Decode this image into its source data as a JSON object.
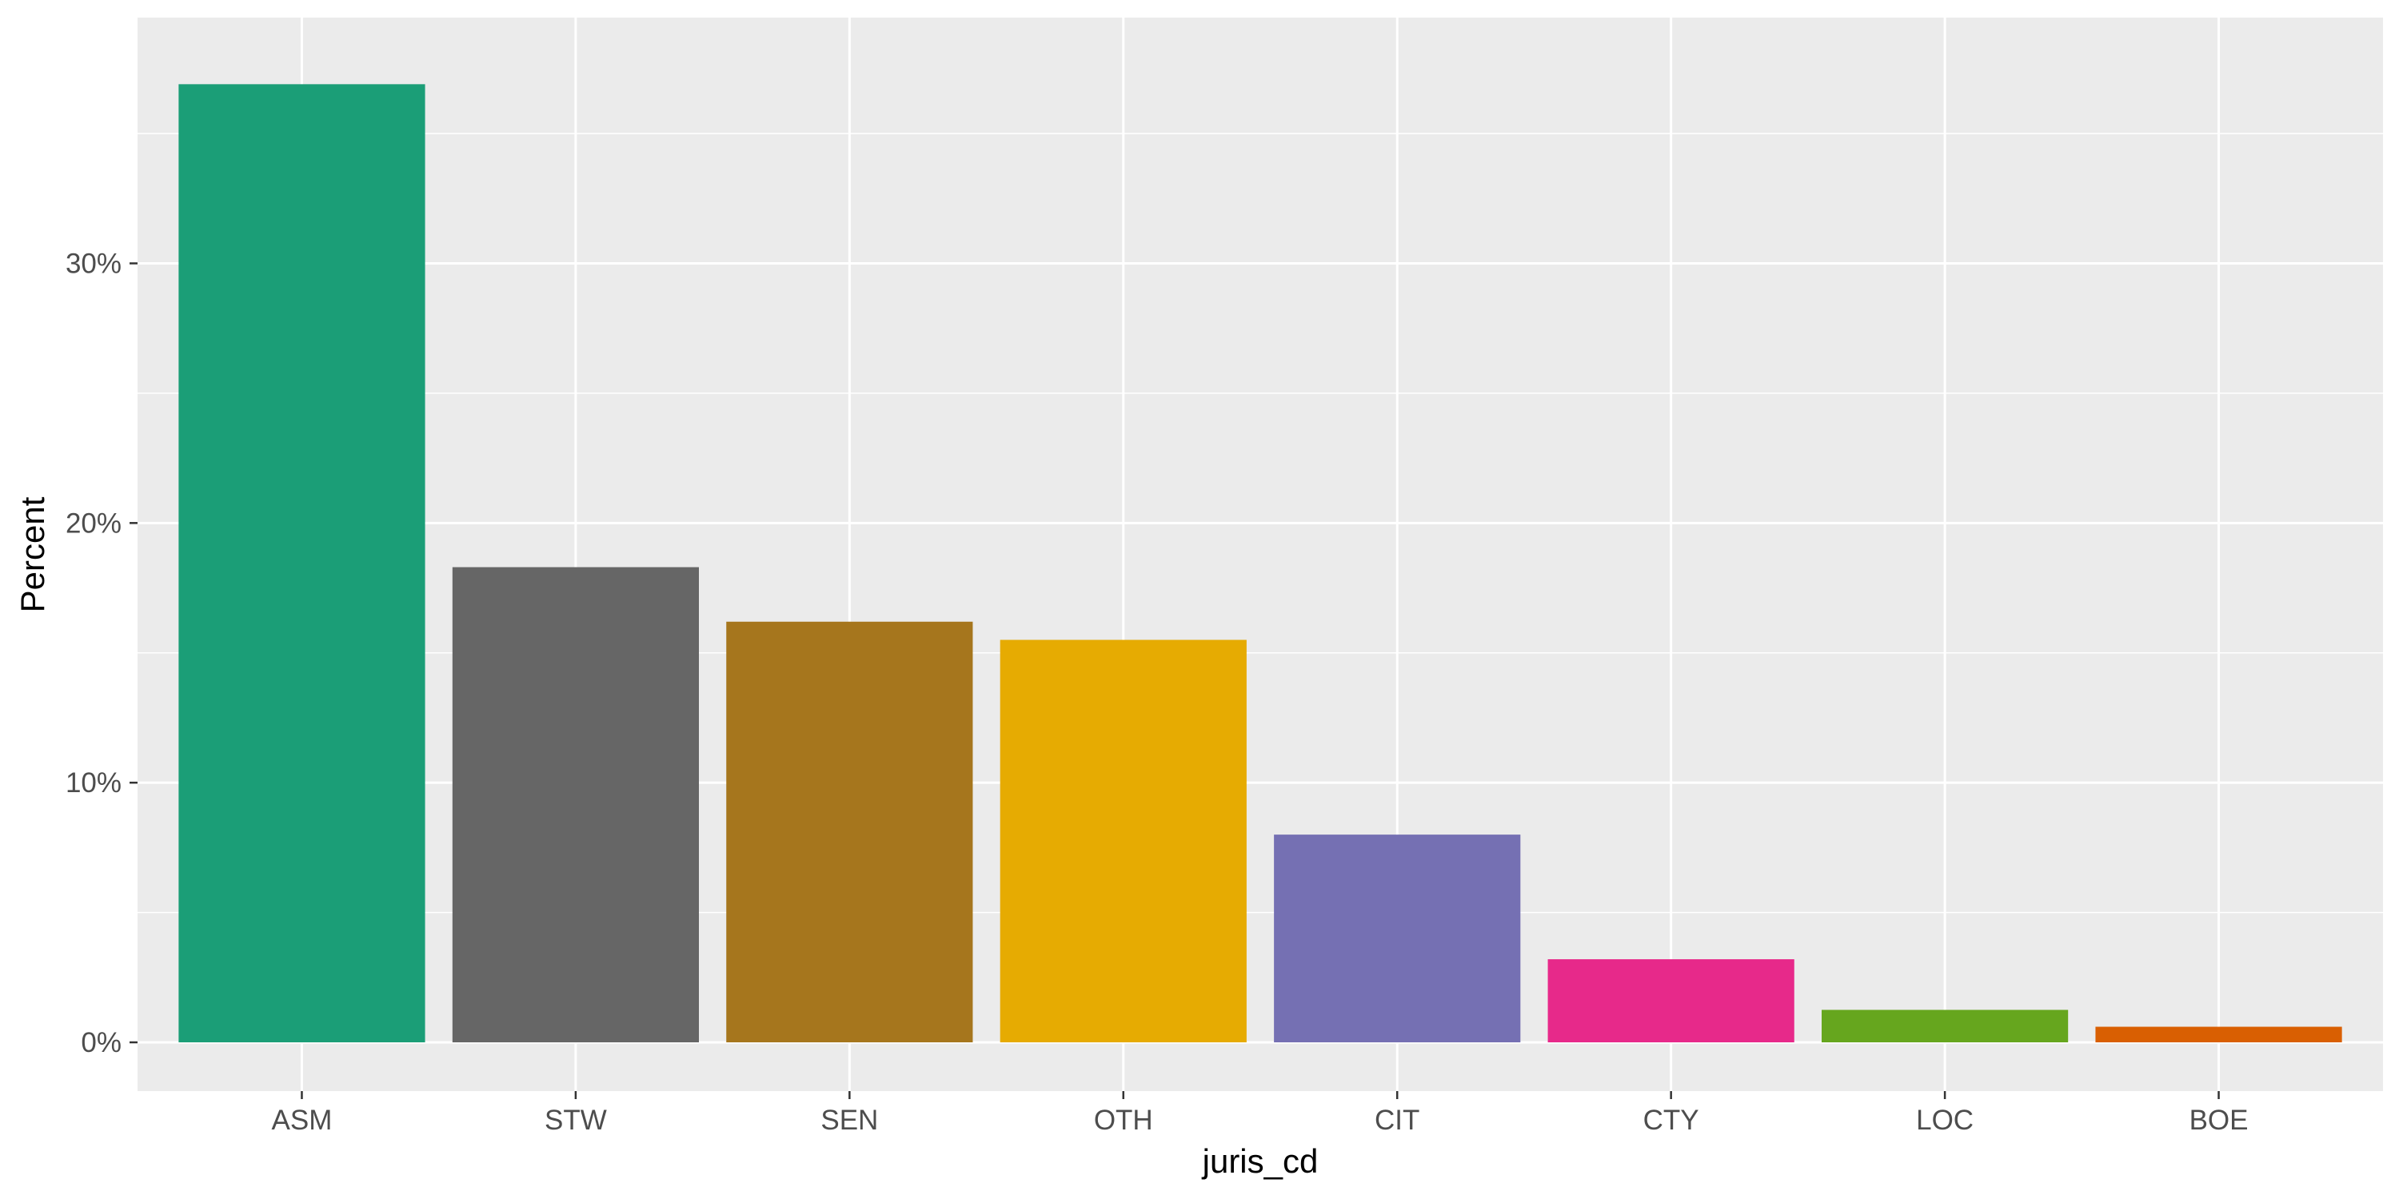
{
  "chart_data": {
    "type": "bar",
    "categories": [
      "ASM",
      "STW",
      "SEN",
      "OTH",
      "CIT",
      "CTY",
      "LOC",
      "BOE"
    ],
    "values": [
      36.9,
      18.3,
      16.2,
      15.5,
      8.0,
      3.2,
      1.25,
      0.6
    ],
    "colors": [
      "#1b9e77",
      "#666666",
      "#a6761d",
      "#e6ab02",
      "#7570b3",
      "#e7298a",
      "#66a61e",
      "#d95f02"
    ],
    "y_ticks": [
      0,
      10,
      20,
      30
    ],
    "y_tick_labels": [
      "0%",
      "10%",
      "20%",
      "30%"
    ],
    "ylim": [
      0,
      38.85
    ],
    "xlabel": "juris_cd",
    "ylabel": "Percent",
    "grid": true,
    "legend": "none",
    "panel_background": "#ebebeb",
    "grid_color": "#ffffff"
  }
}
